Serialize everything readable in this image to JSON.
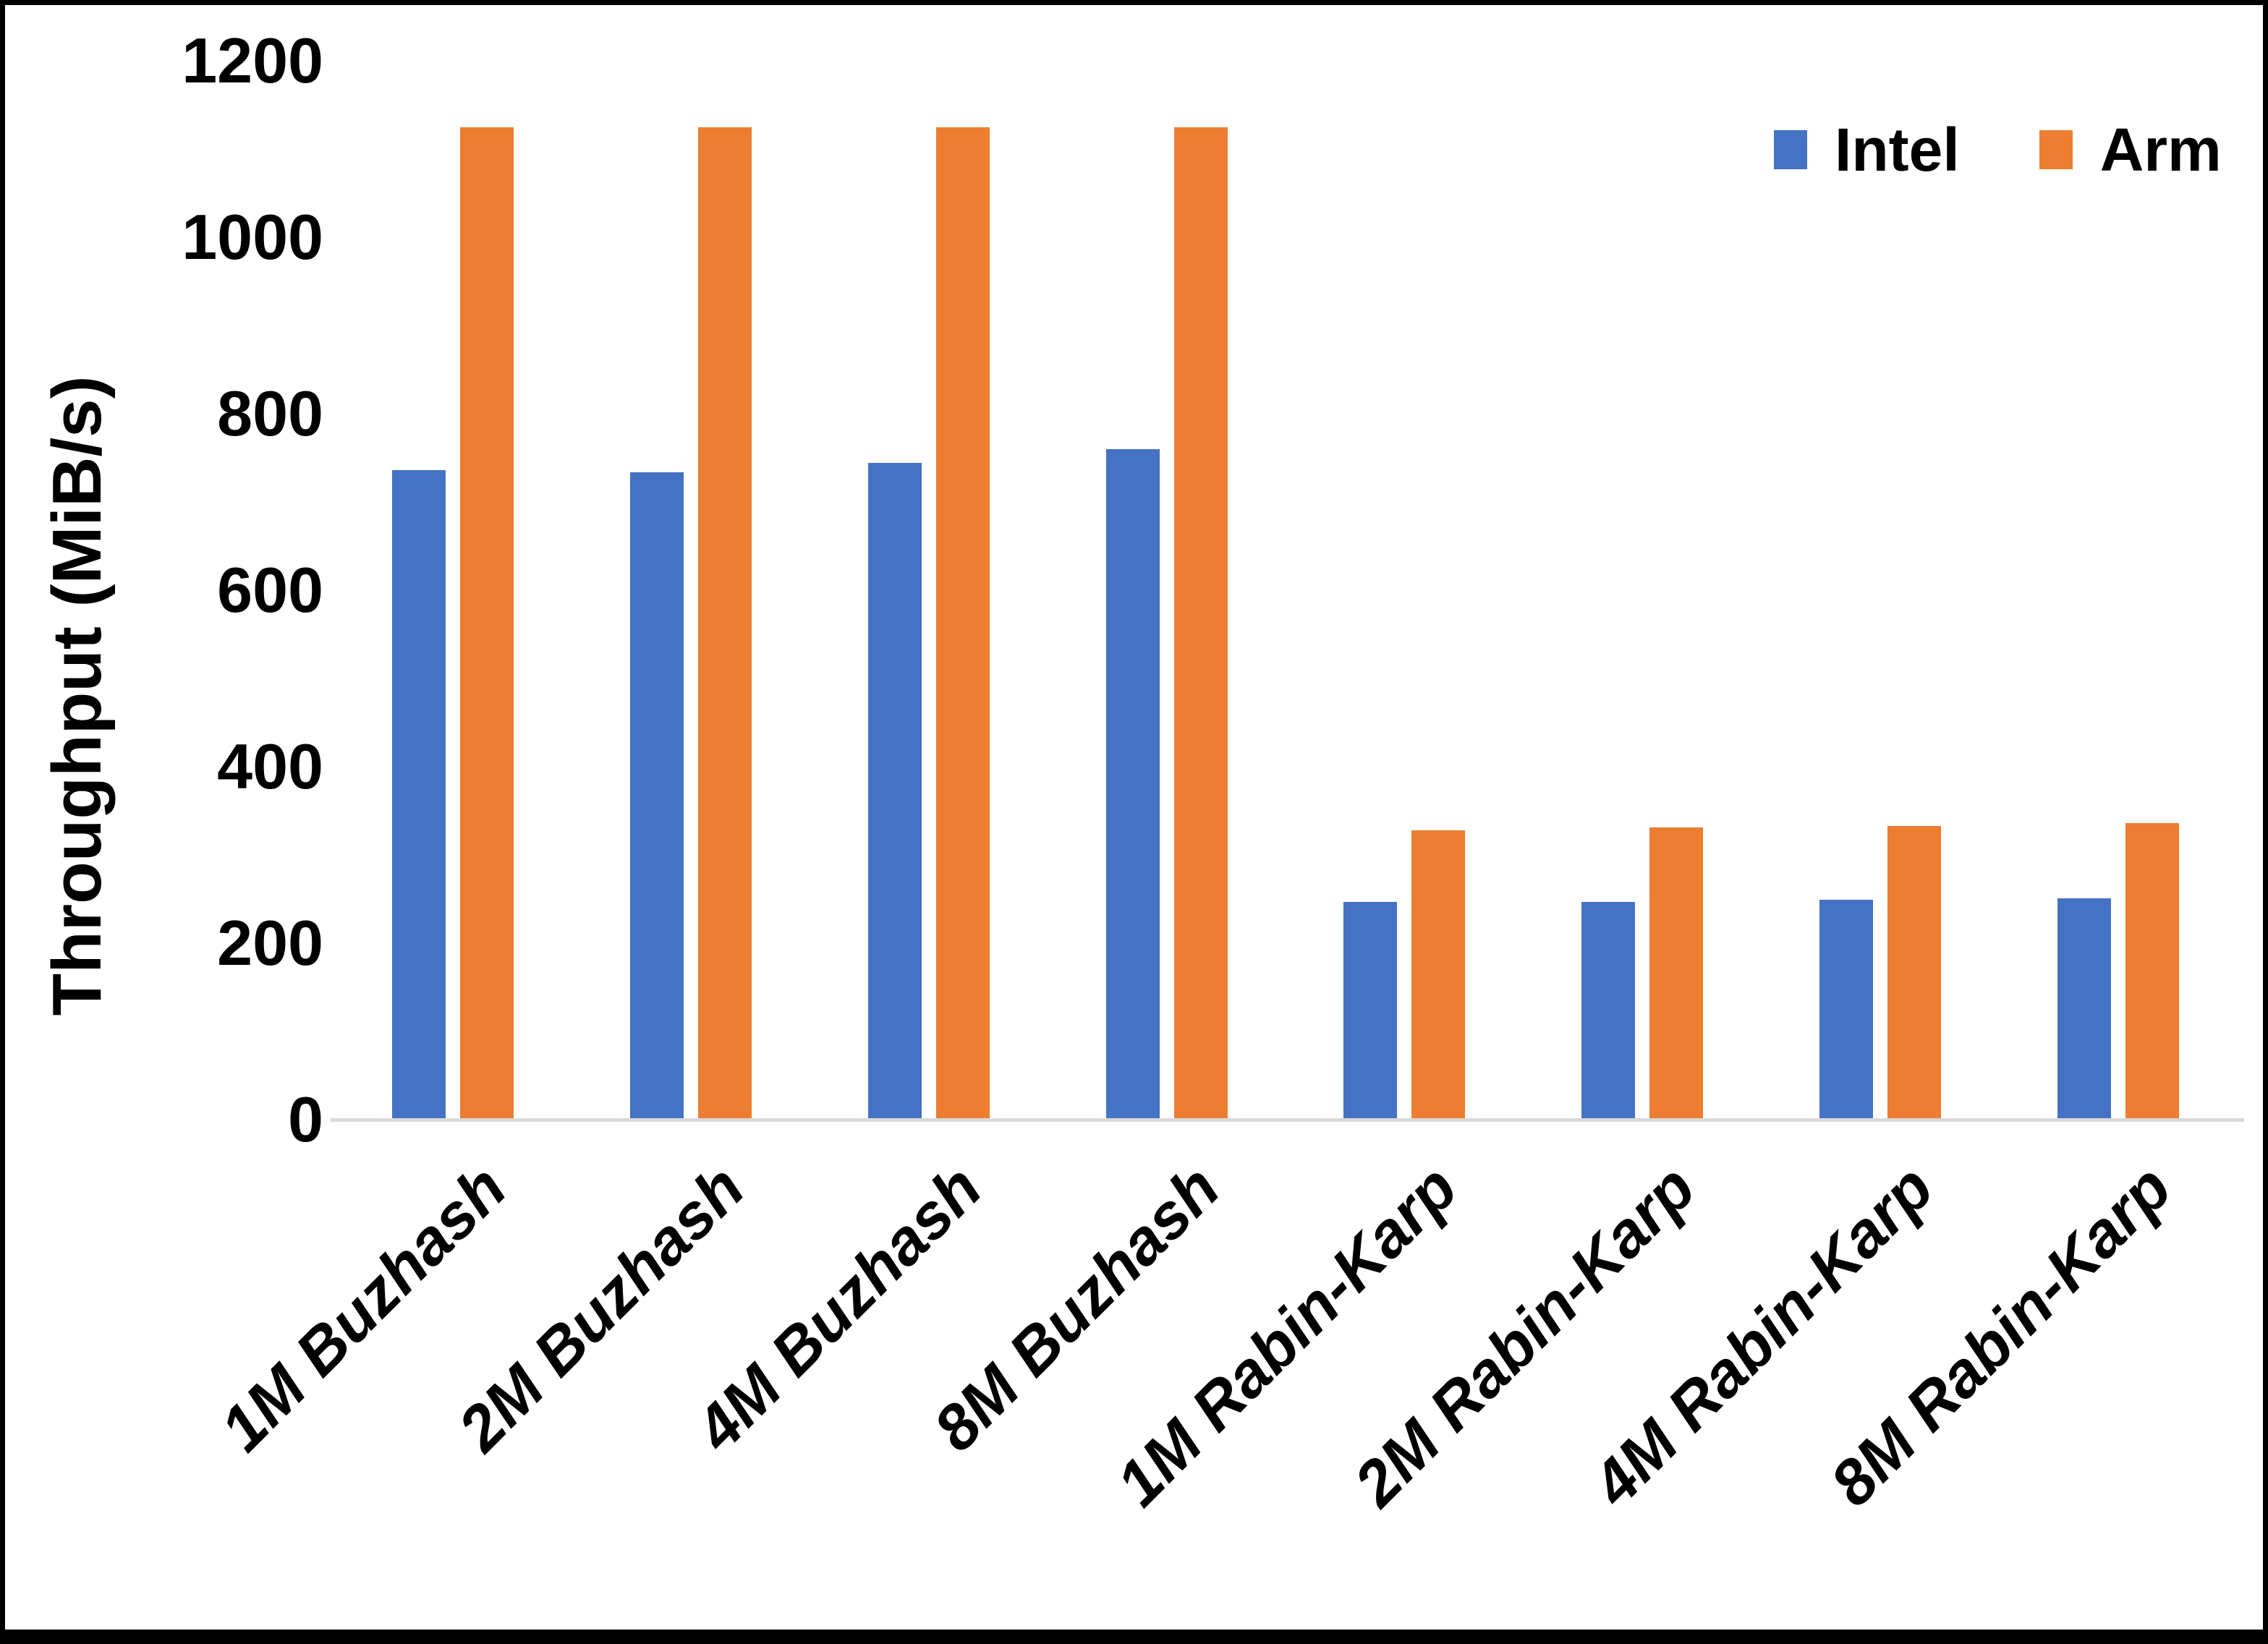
{
  "chart_data": {
    "type": "bar",
    "title": "",
    "xlabel": "",
    "ylabel": "Throughput (MiB/s)",
    "categories": [
      "1M Buzhash",
      "2M Buzhash",
      "4M Buzhash",
      "8M Buzhash",
      "1M Rabin-Karp",
      "2M Rabin-Karp",
      "4M Rabin-Karp",
      "8M Rabin-Karp"
    ],
    "series": [
      {
        "name": "Intel",
        "color": "#4472C4",
        "values": [
          736,
          734,
          744,
          760,
          247,
          247,
          249,
          251
        ]
      },
      {
        "name": "Arm",
        "color": "#ED7D31",
        "values": [
          1125,
          1125,
          1125,
          1125,
          328,
          331,
          333,
          336
        ]
      }
    ],
    "ylim": [
      0,
      1200
    ],
    "yticks": [
      0,
      200,
      400,
      600,
      800,
      1000,
      1200
    ],
    "grid": false,
    "legend_position": "top-right",
    "axis_line_color": "#d9d9d9"
  }
}
